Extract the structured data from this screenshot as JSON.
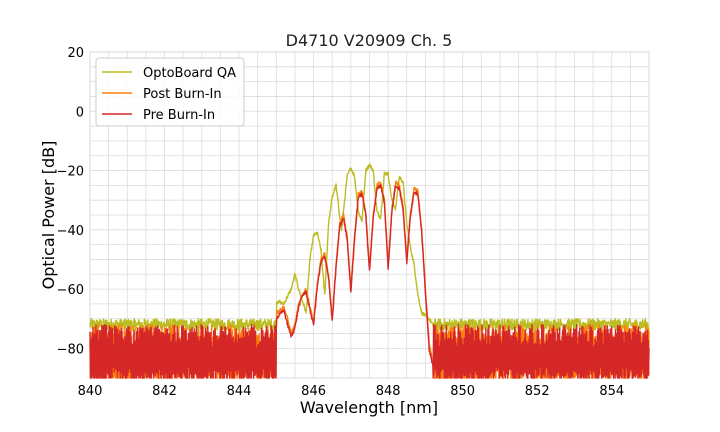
{
  "chart_data": {
    "type": "line",
    "title": "D4710 V20909 Ch. 5",
    "xlabel": "Wavelength [nm]",
    "ylabel": "Optical Power [dB]",
    "xlim": [
      840,
      855
    ],
    "ylim": [
      -90,
      20
    ],
    "xticks": [
      840,
      842,
      844,
      846,
      848,
      850,
      852,
      854
    ],
    "yticks": [
      -80,
      -60,
      -40,
      -20,
      0,
      20
    ],
    "xtick_labels": [
      "840",
      "842",
      "844",
      "846",
      "848",
      "850",
      "852",
      "854"
    ],
    "ytick_labels": [
      "−80",
      "−60",
      "−40",
      "−20",
      "0",
      "20"
    ],
    "grid": true,
    "legend_position": "top-left",
    "series": [
      {
        "name": "OptoBoard QA",
        "color": "#bcbd22",
        "noise_floor": -72,
        "x": [
          845.0,
          845.2,
          845.4,
          845.5,
          845.6,
          845.8,
          845.9,
          846.0,
          846.1,
          846.2,
          846.3,
          846.4,
          846.5,
          846.6,
          846.75,
          846.8,
          846.9,
          847.0,
          847.1,
          847.2,
          847.3,
          847.4,
          847.5,
          847.6,
          847.7,
          847.8,
          847.9,
          848.0,
          848.1,
          848.2,
          848.3,
          848.4,
          848.5,
          848.6,
          848.7,
          848.8,
          848.9,
          849.0,
          849.1,
          849.2
        ],
        "y": [
          -64,
          -65,
          -60,
          -55,
          -60,
          -68,
          -50,
          -42,
          -41,
          -47,
          -62,
          -38,
          -29,
          -25,
          -40,
          -34,
          -22,
          -19,
          -22,
          -34,
          -37,
          -20,
          -18,
          -20,
          -34,
          -36,
          -21,
          -21,
          -30,
          -33,
          -22,
          -24,
          -38,
          -46,
          -52,
          -62,
          -68,
          -69,
          -70,
          -72
        ]
      },
      {
        "name": "Post Burn-In",
        "color": "#ff7f0e",
        "noise_floor": -85,
        "x": [
          845.0,
          845.2,
          845.3,
          845.4,
          845.5,
          845.6,
          845.7,
          845.8,
          845.9,
          846.0,
          846.1,
          846.2,
          846.3,
          846.4,
          846.5,
          846.6,
          846.7,
          846.8,
          846.9,
          847.0,
          847.1,
          847.2,
          847.3,
          847.4,
          847.5,
          847.6,
          847.7,
          847.8,
          847.9,
          848.0,
          848.1,
          848.2,
          848.3,
          848.4,
          848.5,
          848.6,
          848.7,
          848.8,
          848.9,
          849.0,
          849.1,
          849.2
        ],
        "y": [
          -68,
          -66,
          -70,
          -75,
          -72,
          -65,
          -62,
          -60,
          -66,
          -71,
          -58,
          -50,
          -48,
          -55,
          -70,
          -52,
          -38,
          -35,
          -42,
          -60,
          -42,
          -28,
          -27,
          -34,
          -53,
          -35,
          -25,
          -24,
          -30,
          -52,
          -33,
          -24,
          -25,
          -32,
          -50,
          -34,
          -26,
          -27,
          -40,
          -60,
          -78,
          -85
        ]
      },
      {
        "name": "Pre Burn-In",
        "color": "#d62728",
        "noise_floor": -85,
        "x": [
          845.0,
          845.2,
          845.3,
          845.4,
          845.5,
          845.6,
          845.7,
          845.8,
          845.9,
          846.0,
          846.1,
          846.2,
          846.3,
          846.4,
          846.5,
          846.6,
          846.7,
          846.8,
          846.9,
          847.0,
          847.1,
          847.2,
          847.3,
          847.4,
          847.5,
          847.6,
          847.7,
          847.8,
          847.9,
          848.0,
          848.1,
          848.2,
          848.3,
          848.4,
          848.5,
          848.6,
          848.7,
          848.8,
          848.9,
          849.0,
          849.1,
          849.2
        ],
        "y": [
          -70,
          -67,
          -72,
          -76,
          -73,
          -66,
          -62,
          -61,
          -67,
          -72,
          -59,
          -51,
          -49,
          -56,
          -71,
          -53,
          -39,
          -36,
          -43,
          -61,
          -43,
          -29,
          -28,
          -35,
          -54,
          -36,
          -26,
          -25,
          -31,
          -53,
          -34,
          -25,
          -26,
          -33,
          -51,
          -35,
          -27,
          -28,
          -41,
          -61,
          -80,
          -86
        ]
      }
    ]
  }
}
